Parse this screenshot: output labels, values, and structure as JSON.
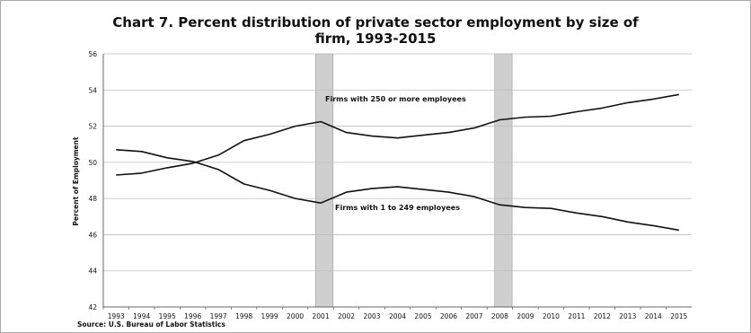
{
  "chart_data": {
    "type": "line",
    "title_line1": "Chart 7. Percent distribution of private sector employment by size of",
    "title_line2": "firm, 1993-2015",
    "ylabel": "Percent of Employment",
    "xlabel": "",
    "source": "Source: U.S. Bureau of Labor Statistics",
    "ylim": [
      42,
      56
    ],
    "yticks": [
      42,
      44,
      46,
      48,
      50,
      52,
      54,
      56
    ],
    "categories": [
      "1993",
      "1994",
      "1995",
      "1996",
      "1997",
      "1998",
      "1999",
      "2000",
      "2001",
      "2002",
      "2003",
      "2004",
      "2005",
      "2006",
      "2007",
      "2008",
      "2009",
      "2010",
      "2011",
      "2012",
      "2013",
      "2014",
      "2015"
    ],
    "series": [
      {
        "name": "Firms with 250 or more employees",
        "values": [
          49.3,
          49.4,
          49.7,
          49.95,
          50.4,
          51.2,
          51.55,
          52.0,
          52.25,
          51.65,
          51.45,
          51.35,
          51.5,
          51.65,
          51.9,
          52.35,
          52.5,
          52.55,
          52.8,
          53.0,
          53.3,
          53.5,
          53.75
        ]
      },
      {
        "name": "Firms with 1 to 249 employees",
        "values": [
          50.7,
          50.6,
          50.25,
          50.05,
          49.6,
          48.8,
          48.45,
          48.0,
          47.75,
          48.35,
          48.55,
          48.65,
          48.5,
          48.35,
          48.1,
          47.65,
          47.5,
          47.45,
          47.2,
          47.0,
          46.7,
          46.5,
          46.25
        ]
      }
    ],
    "recessions": [
      {
        "start": "2001",
        "end": "2001"
      },
      {
        "start": "2008",
        "end": "2008"
      }
    ],
    "grid": "horizontal",
    "legend": "inline labels"
  },
  "colors": {
    "line": "#111111",
    "grid": "#bdbdbd",
    "recession": "#cfcfcf",
    "frame": "#aaaaaa"
  }
}
